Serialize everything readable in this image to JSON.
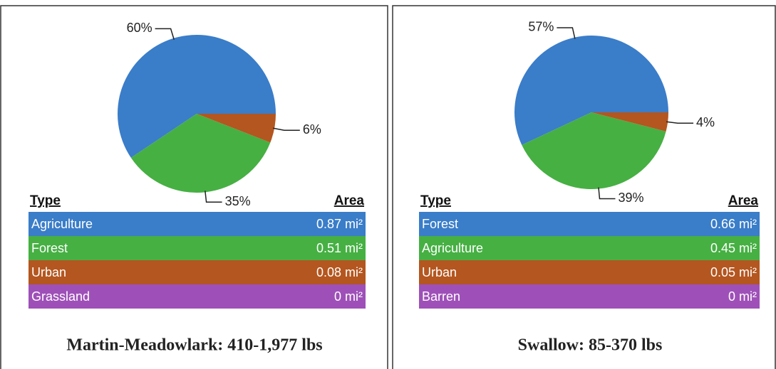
{
  "chart_data": [
    {
      "type": "pie",
      "categories": [
        "Agriculture",
        "Forest",
        "Urban",
        "Grassland"
      ],
      "values": [
        60,
        35,
        6,
        0
      ],
      "value_labels": [
        "60%",
        "35%",
        "6%",
        null
      ],
      "colors": [
        "#3a7dc9",
        "#46b043",
        "#b4561f",
        "#9e50b8"
      ],
      "table": {
        "headers": [
          "Type",
          "Area"
        ],
        "rows": [
          [
            "Agriculture",
            "0.87 mi²"
          ],
          [
            "Forest",
            "0.51 mi²"
          ],
          [
            "Urban",
            "0.08 mi²"
          ],
          [
            "Grassland",
            "0 mi²"
          ]
        ]
      },
      "caption": "Martin-Meadowlark: 410-1,977 lbs"
    },
    {
      "type": "pie",
      "categories": [
        "Forest",
        "Agriculture",
        "Urban",
        "Barren"
      ],
      "values": [
        57,
        39,
        4,
        0
      ],
      "value_labels": [
        "57%",
        "39%",
        "4%",
        null
      ],
      "colors": [
        "#3a7dc9",
        "#46b043",
        "#b4561f",
        "#9e50b8"
      ],
      "table": {
        "headers": [
          "Type",
          "Area"
        ],
        "rows": [
          [
            "Forest",
            "0.66 mi²"
          ],
          [
            "Agriculture",
            "0.45 mi²"
          ],
          [
            "Urban",
            "0.05 mi²"
          ],
          [
            "Barren",
            "0 mi²"
          ]
        ]
      },
      "caption": "Swallow: 85-370 lbs"
    }
  ]
}
